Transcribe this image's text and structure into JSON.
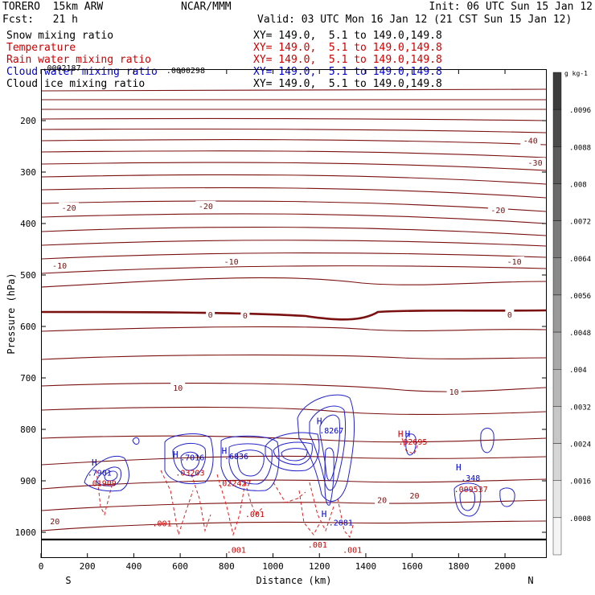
{
  "header": {
    "model": "TORERO  15km ARW",
    "org": "NCAR/MMM",
    "init": "Init: 06 UTC Sun 15 Jan 12",
    "fcst": "Fcst:   21 h",
    "valid": "Valid: 03 UTC Mon 16 Jan 12 (21 CST Sun 15 Jan 12)"
  },
  "fields": [
    {
      "name": "Snow mixing ratio",
      "xy": "XY= 149.0,  5.1 to 149.0,149.8",
      "color": "#000000"
    },
    {
      "name": "Temperature",
      "xy": "XY= 149.0,  5.1 to 149.0,149.8",
      "color": "#cc0000"
    },
    {
      "name": "Rain water mixing ratio",
      "xy": "XY= 149.0,  5.1 to 149.0,149.8",
      "color": "#cc0000"
    },
    {
      "name": "Cloud water mixing ratio",
      "xy": "XY= 149.0,  5.1 to 149.0,149.8",
      "color": "#0000cc"
    },
    {
      "name": "Cloud ice mixing ratio",
      "xy": "XY= 149.0,  5.1 to 149.0,149.8",
      "color": "#000000"
    }
  ],
  "chart_data": {
    "type": "contour-cross-section",
    "xlabel": "Distance (km)",
    "ylabel": "Pressure (hPa)",
    "xlim": [
      0,
      2180
    ],
    "ylim": [
      1050,
      100
    ],
    "x_ticks": [
      "0",
      "200",
      "400",
      "600",
      "800",
      "1000",
      "1200",
      "1400",
      "1600",
      "1800",
      "2000"
    ],
    "y_ticks": [
      "200",
      "300",
      "400",
      "500",
      "600",
      "700",
      "800",
      "900",
      "1000"
    ],
    "x_end_left": "S",
    "x_end_right": "N",
    "colorbar": {
      "unit": "g kg-1",
      "labels": [
        ".0096",
        ".0088",
        ".008",
        ".0072",
        ".0064",
        ".0056",
        ".0048",
        ".004",
        ".0032",
        ".0024",
        ".0016",
        ".0008"
      ]
    },
    "temperature_labels": [
      {
        "text": "-40",
        "x": 2110,
        "p": 240
      },
      {
        "text": "-30",
        "x": 2130,
        "p": 283
      },
      {
        "text": "-20",
        "x": 120,
        "p": 370
      },
      {
        "text": "-20",
        "x": 710,
        "p": 367
      },
      {
        "text": "-20",
        "x": 1970,
        "p": 375
      },
      {
        "text": "-10",
        "x": 80,
        "p": 483
      },
      {
        "text": "-10",
        "x": 820,
        "p": 475
      },
      {
        "text": "-10",
        "x": 2040,
        "p": 475
      },
      {
        "text": "0",
        "x": 730,
        "p": 578
      },
      {
        "text": "0",
        "x": 880,
        "p": 580
      },
      {
        "text": "0",
        "x": 2020,
        "p": 578
      },
      {
        "text": "10",
        "x": 590,
        "p": 720
      },
      {
        "text": "10",
        "x": 1780,
        "p": 728
      },
      {
        "text": "20",
        "x": 60,
        "p": 980
      },
      {
        "text": "20",
        "x": 1470,
        "p": 938
      },
      {
        "text": "20",
        "x": 1610,
        "p": 930
      }
    ],
    "value_labels": [
      {
        "text": ".0002187",
        "x": 5,
        "p": 103,
        "color": "#000000"
      },
      {
        "text": ".0000298",
        "x": 540,
        "p": 108,
        "color": "#000000"
      },
      {
        "text": ".7901",
        "x": 200,
        "p": 890,
        "color": "#0000cc"
      },
      {
        "text": ".7016",
        "x": 600,
        "p": 860,
        "color": "#0000cc"
      },
      {
        "text": ".6836",
        "x": 790,
        "p": 858,
        "color": "#0000cc"
      },
      {
        "text": ".8267",
        "x": 1200,
        "p": 808,
        "color": "#0000cc"
      },
      {
        "text": ".348",
        "x": 1810,
        "p": 900,
        "color": "#0000cc"
      },
      {
        "text": ".2681",
        "x": 1240,
        "p": 987,
        "color": "#0000cc"
      },
      {
        "text": ".01909",
        "x": 200,
        "p": 910,
        "color": "#cc0000"
      },
      {
        "text": ".03203",
        "x": 580,
        "p": 890,
        "color": "#cc0000"
      },
      {
        "text": ".022427",
        "x": 760,
        "p": 910,
        "color": "#cc0000"
      },
      {
        "text": ".02695",
        "x": 1540,
        "p": 830,
        "color": "#cc0000"
      },
      {
        "text": ".009537",
        "x": 1780,
        "p": 922,
        "color": "#cc0000"
      },
      {
        "text": ".001",
        "x": 480,
        "p": 988,
        "color": "#cc0000"
      },
      {
        "text": ".001",
        "x": 800,
        "p": 1040,
        "color": "#cc0000"
      },
      {
        "text": ".001",
        "x": 880,
        "p": 970,
        "color": "#cc0000"
      },
      {
        "text": ".001",
        "x": 1150,
        "p": 1030,
        "color": "#cc0000"
      },
      {
        "text": ".001",
        "x": 1300,
        "p": 1040,
        "color": "#cc0000"
      }
    ],
    "h_markers": [
      {
        "x": 230,
        "p": 870,
        "color": "#0000cc"
      },
      {
        "x": 580,
        "p": 855,
        "color": "#0000cc"
      },
      {
        "x": 790,
        "p": 848,
        "color": "#0000cc"
      },
      {
        "x": 1200,
        "p": 790,
        "color": "#0000cc"
      },
      {
        "x": 1800,
        "p": 880,
        "color": "#0000cc"
      },
      {
        "x": 1220,
        "p": 970,
        "color": "#0000cc"
      },
      {
        "x": 1550,
        "p": 815,
        "color": "#cc0000"
      },
      {
        "x": 1580,
        "p": 815,
        "color": "#0000cc"
      }
    ]
  }
}
